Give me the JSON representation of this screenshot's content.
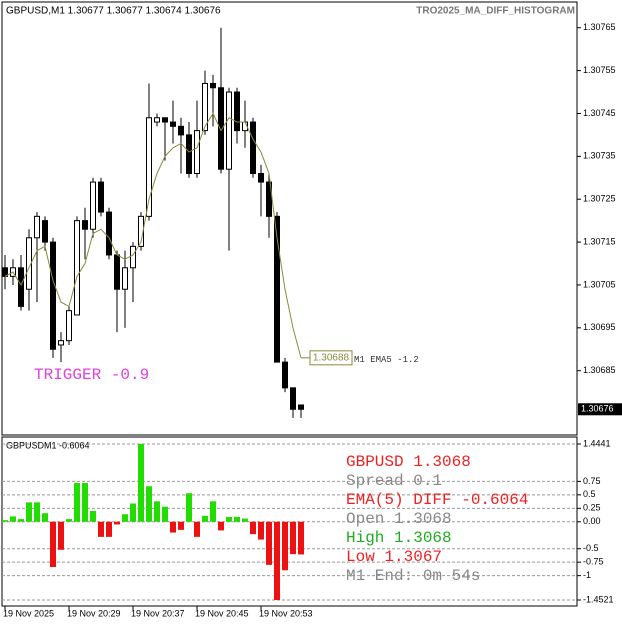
{
  "chart_data": [
    {
      "type": "candlestick",
      "title": "GBPUSD,M1  1.30677 1.30677 1.30674 1.30676",
      "indicator_name": "TRO2025_MA_DIFF_HISTOGRAM",
      "annotations": [
        "TRIGGER -0.9",
        "M1 EMA5 -1.2"
      ],
      "annotation_color": "#e040e0",
      "categories": [
        "19 Nov 2025",
        null,
        null,
        null,
        null,
        null,
        null,
        null,
        "19 Nov 20:29",
        null,
        null,
        null,
        null,
        null,
        null,
        null,
        "19 Nov 20:37",
        null,
        null,
        null,
        null,
        null,
        null,
        null,
        "19 Nov 20:45",
        null,
        null,
        null,
        null,
        null,
        null,
        null,
        "19 Nov 20:53",
        null,
        null,
        null,
        null,
        null
      ],
      "open": [
        1.30709,
        1.30707,
        1.30709,
        1.30704,
        1.30716,
        1.3072,
        1.30715,
        1.30691,
        1.30692,
        1.30698,
        1.3072,
        1.30718,
        1.30729,
        1.30722,
        1.30712,
        1.30704,
        1.30709,
        1.30714,
        1.30721,
        1.30743,
        1.30744,
        1.30743,
        1.30742,
        1.3074,
        1.30731,
        1.30741,
        1.30752,
        1.30751,
        1.30732,
        1.3075,
        1.30741,
        1.30743,
        1.30731,
        1.30729,
        1.30721,
        1.30687,
        1.30681,
        1.30677
      ],
      "high": [
        1.30712,
        1.30711,
        1.30712,
        1.30718,
        1.30722,
        1.30721,
        1.30716,
        1.30694,
        1.307,
        1.30721,
        1.30723,
        1.3073,
        1.3073,
        1.30723,
        1.30713,
        1.30713,
        1.30715,
        1.30722,
        1.30752,
        1.30745,
        1.30744,
        1.30748,
        1.30744,
        1.30743,
        1.30748,
        1.30755,
        1.30754,
        1.30765,
        1.30751,
        1.30751,
        1.30748,
        1.30744,
        1.30733,
        1.30731,
        1.30722,
        1.30688,
        1.30681,
        1.30677
      ],
      "low": [
        1.30704,
        1.30705,
        1.30699,
        1.30699,
        1.30701,
        1.30713,
        1.30688,
        1.30687,
        1.30691,
        1.30698,
        1.30711,
        1.30716,
        1.30721,
        1.30711,
        1.30694,
        1.30695,
        1.30701,
        1.30713,
        1.3072,
        1.30742,
        1.30734,
        1.30738,
        1.30731,
        1.3073,
        1.3073,
        1.3074,
        1.30742,
        1.30731,
        1.30713,
        1.30738,
        1.30737,
        1.3073,
        1.30721,
        1.30716,
        1.30687,
        1.3068,
        1.30674,
        1.30674
      ],
      "close": [
        1.30707,
        1.30709,
        1.307,
        1.30716,
        1.30721,
        1.30715,
        1.3069,
        1.30692,
        1.30699,
        1.3072,
        1.30718,
        1.30729,
        1.30722,
        1.30712,
        1.30704,
        1.30709,
        1.30714,
        1.30721,
        1.30744,
        1.30744,
        1.30743,
        1.30742,
        1.3074,
        1.30731,
        1.30741,
        1.30752,
        1.30751,
        1.30732,
        1.3075,
        1.30741,
        1.30743,
        1.30731,
        1.30729,
        1.30721,
        1.30687,
        1.30681,
        1.30676,
        1.30676
      ],
      "up_color": "#ffffff",
      "down_color": "#000000",
      "ema": {
        "color": "#8a8a3c",
        "values": [
          1.30707,
          1.30708,
          1.30705,
          1.30709,
          1.30713,
          1.30714,
          1.30706,
          1.30701,
          1.307,
          1.30707,
          1.3071,
          1.30717,
          1.30718,
          1.30716,
          1.30712,
          1.30711,
          1.30712,
          1.30715,
          1.30725,
          1.30731,
          1.30735,
          1.30737,
          1.30738,
          1.30736,
          1.30737,
          1.30742,
          1.30745,
          1.30741,
          1.30744,
          1.30743,
          1.30743,
          1.30739,
          1.30736,
          1.30731,
          1.30716,
          1.30704,
          1.30695,
          1.30688
        ]
      },
      "ylim": [
        1.3067,
        1.30771
      ],
      "yticks": [
        1.30765,
        1.30755,
        1.30745,
        1.30735,
        1.30725,
        1.30715,
        1.30705,
        1.30695,
        1.30685
      ]
    },
    {
      "type": "bar",
      "title": "GBPUSDM1 -0.6064",
      "values": [
        0.03,
        0.1,
        0.05,
        0.36,
        0.36,
        0.16,
        -0.84,
        -0.52,
        0.05,
        0.72,
        0.72,
        0.2,
        -0.28,
        -0.28,
        -0.05,
        0.14,
        0.34,
        1.4441,
        0.66,
        0.38,
        0.28,
        -0.2,
        -0.15,
        0.53,
        -0.28,
        0.11,
        0.38,
        -0.16,
        0.09,
        0.09,
        0.06,
        -0.23,
        -0.33,
        -0.8,
        -1.4521,
        -0.9,
        -0.6,
        -0.6064
      ],
      "up_color": "#22dd00",
      "down_color": "#ee1111",
      "ylim": [
        -1.4521,
        1.4441
      ],
      "yticks": [
        1.4441,
        0.75,
        0.5,
        0.25,
        {
          "value": 0,
          "label": "0.00"
        },
        -0.5,
        -0.75,
        -1,
        -1.4521
      ],
      "grid": true,
      "info": [
        {
          "text": "GBPUSD 1.3068",
          "color": "#ee2222"
        },
        {
          "text": "Spread 0.1",
          "color": "#888888"
        },
        {
          "text": "EMA(5) DIFF -0.6064",
          "color": "#ee2222"
        },
        {
          "text": "Open 1.3068",
          "color": "#888888"
        },
        {
          "text": "High 1.3068",
          "color": "#22aa22"
        },
        {
          "text": "Low 1.3067",
          "color": "#ee2222"
        },
        {
          "text": "M1 End: 0m 54s",
          "color": "#888888"
        }
      ]
    }
  ]
}
